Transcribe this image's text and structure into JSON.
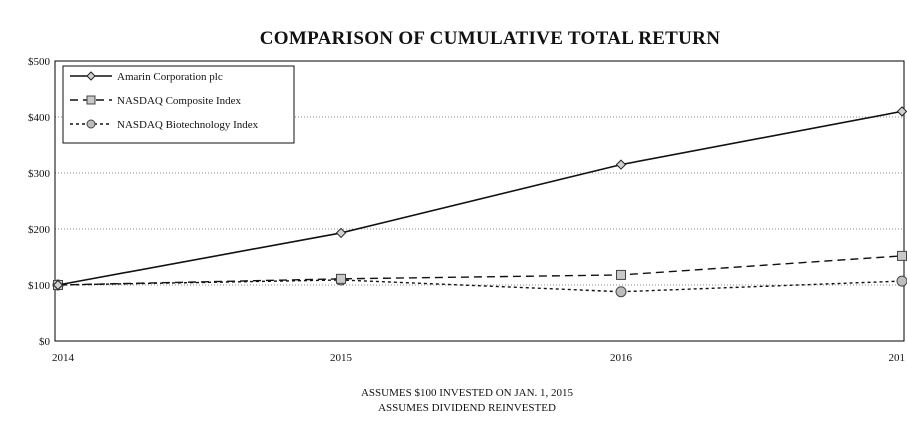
{
  "chart_data": {
    "type": "line",
    "title": "COMPARISON OF CUMULATIVE TOTAL RETURN",
    "xlabel": "",
    "ylabel": "",
    "categories": [
      "2014",
      "2015",
      "2016",
      "201"
    ],
    "ylim": [
      0,
      500
    ],
    "y_ticks": [
      "$0",
      "$100",
      "$200",
      "$300",
      "$400",
      "$500"
    ],
    "y_tick_values": [
      0,
      100,
      200,
      300,
      400,
      500
    ],
    "grid": true,
    "legend_placement": "top-left",
    "series": [
      {
        "name": "Amarin Corporation plc",
        "values": [
          100,
          193,
          315,
          410
        ],
        "marker": "diamond",
        "dash": "solid",
        "color": "#111111"
      },
      {
        "name": "NASDAQ Composite Index",
        "values": [
          100,
          111,
          118,
          152
        ],
        "marker": "square",
        "dash": "dashed",
        "color": "#111111"
      },
      {
        "name": "NASDAQ Biotechnology Index",
        "values": [
          100,
          109,
          88,
          107
        ],
        "marker": "circle",
        "dash": "dotted",
        "color": "#111111"
      }
    ],
    "footnotes": [
      "ASSUMES $100 INVESTED ON JAN. 1, 2015",
      "ASSUMES DIVIDEND REINVESTED"
    ]
  }
}
